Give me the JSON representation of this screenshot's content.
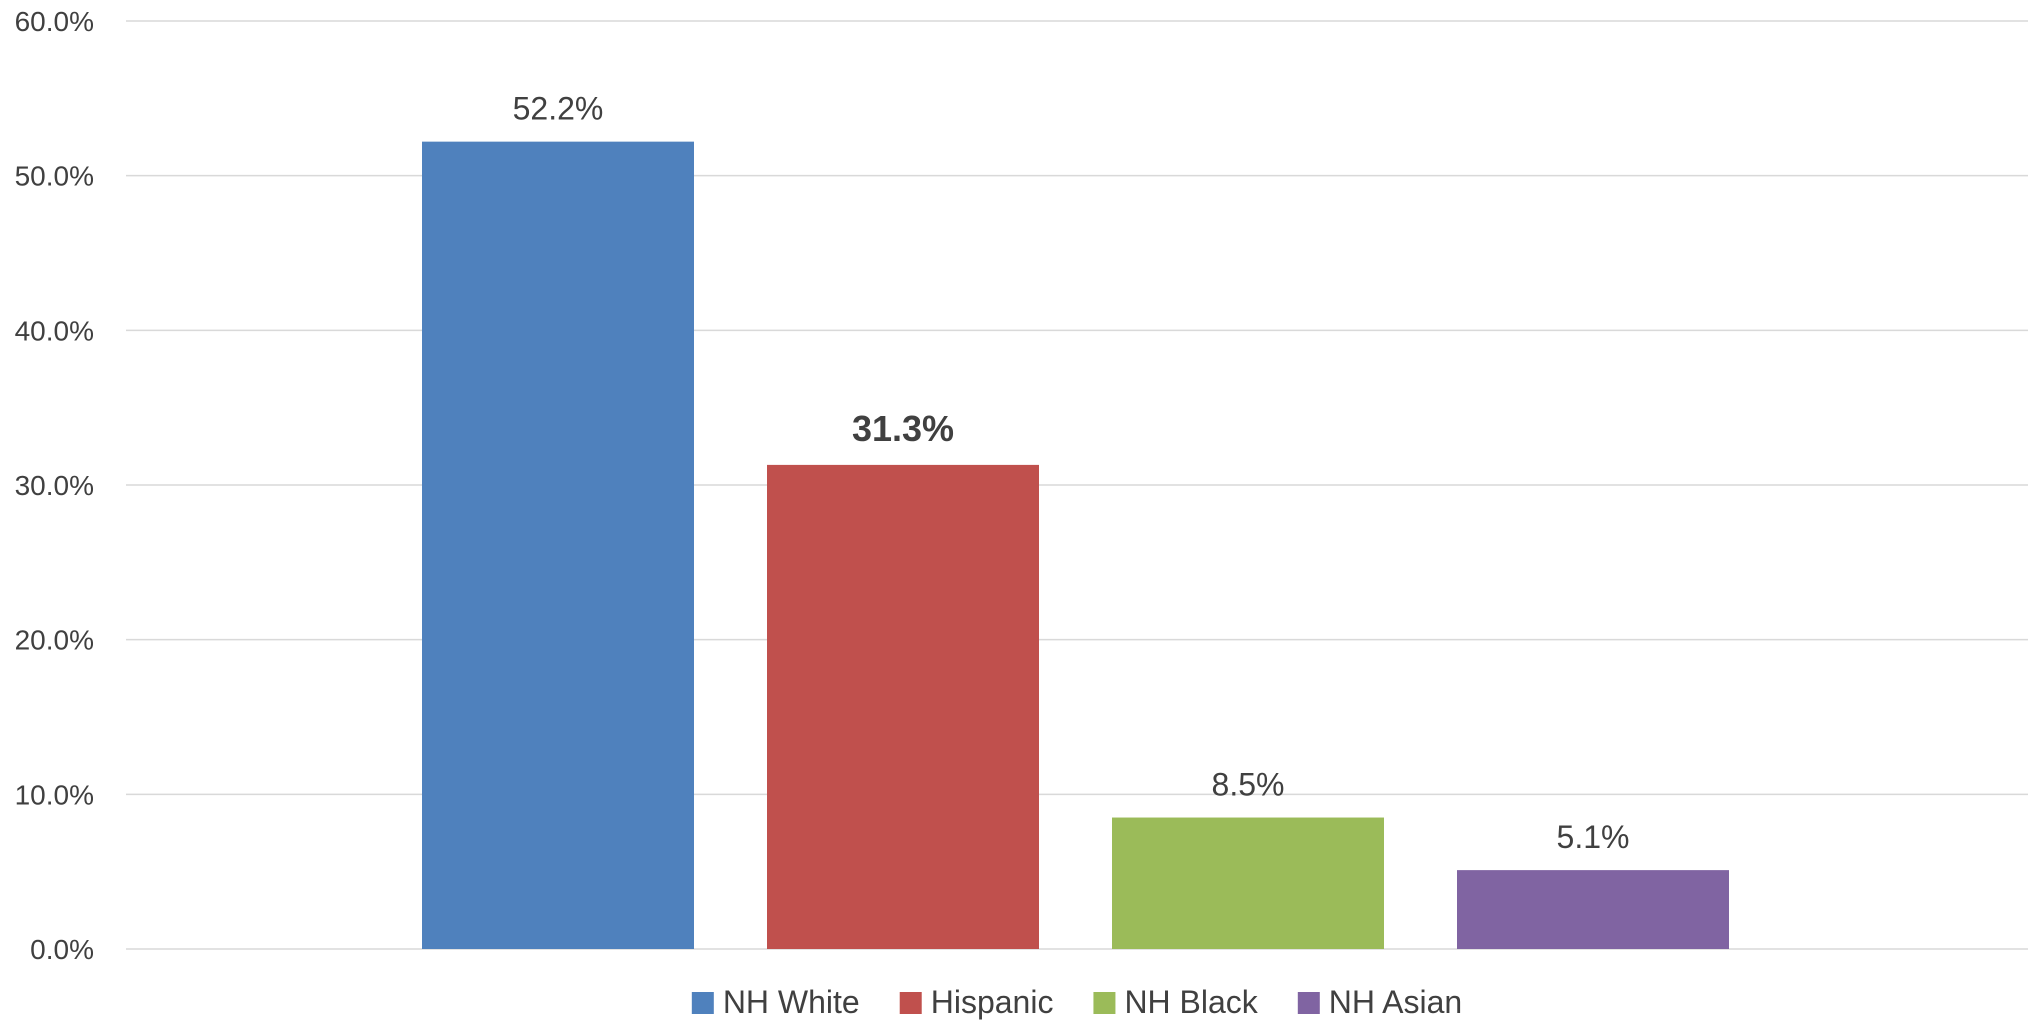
{
  "chart_data": {
    "type": "bar",
    "categories": [
      "NH White",
      "Hispanic",
      "NH Black",
      "NH Asian"
    ],
    "values": [
      52.2,
      31.3,
      8.5,
      5.1
    ],
    "value_labels": [
      "52.2%",
      "31.3%",
      "8.5%",
      "5.1%"
    ],
    "emphasized_labels": [
      false,
      true,
      false,
      false
    ],
    "colors": [
      "#4F81BD",
      "#C0504D",
      "#9BBB59",
      "#8064A2"
    ],
    "ylim": [
      0,
      60
    ],
    "yticks": [
      0,
      10,
      20,
      30,
      40,
      50,
      60
    ],
    "ytick_labels": [
      "0.0%",
      "10.0%",
      "20.0%",
      "30.0%",
      "40.0%",
      "50.0%",
      "60.0%"
    ],
    "grid": true,
    "gridline_color": "#D9D9D9",
    "legend_position": "bottom",
    "title": "",
    "xlabel": "",
    "ylabel": ""
  }
}
